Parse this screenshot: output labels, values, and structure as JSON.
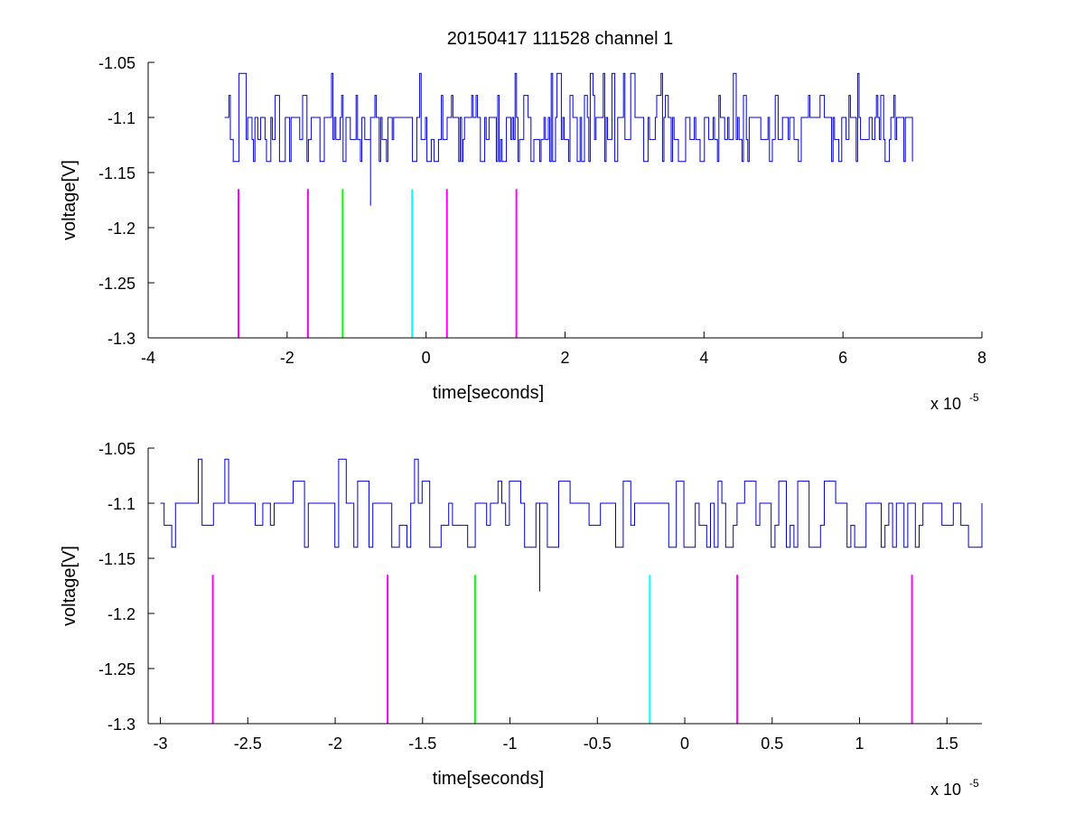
{
  "figure": {
    "title": "20150417 111528 channel 1"
  },
  "colors": {
    "signal": "#0000cc",
    "magenta": "#ff00ff",
    "green": "#00ff00",
    "cyan": "#00ffff",
    "axes": "#000000",
    "background": "#ffffff"
  },
  "chart_data": [
    {
      "type": "line",
      "title": "20150417 111528 channel 1",
      "xlabel": "time[seconds]",
      "ylabel": "voltage[V]",
      "x_multiplier_label": "x 10",
      "x_multiplier_exponent": "-5",
      "xlim": [
        -4,
        8
      ],
      "ylim": [
        -1.3,
        -1.05
      ],
      "xticks": [
        -4,
        -2,
        0,
        2,
        4,
        6,
        8
      ],
      "xtick_labels": [
        "-4",
        "-2",
        "0",
        "2",
        "4",
        "6",
        "8"
      ],
      "yticks": [
        -1.3,
        -1.25,
        -1.2,
        -1.15,
        -1.1,
        -1.05
      ],
      "ytick_labels": [
        "-1.3",
        "-1.25",
        "-1.2",
        "-1.15",
        "-1.1",
        "-1.05"
      ],
      "grid": false,
      "series": [
        {
          "style": "signal",
          "levels": [
            -1.14,
            -1.12,
            -1.1,
            -1.08,
            -1.06
          ],
          "x_range": [
            -2.9,
            7.0
          ],
          "spike": {
            "x": -0.83,
            "y": -1.18
          }
        }
      ],
      "markers": [
        {
          "x": -2.7,
          "y_range": [
            -1.3,
            -1.165
          ],
          "color": "magenta"
        },
        {
          "x": -1.7,
          "y_range": [
            -1.3,
            -1.165
          ],
          "color": "magenta"
        },
        {
          "x": -1.2,
          "y_range": [
            -1.3,
            -1.165
          ],
          "color": "green"
        },
        {
          "x": -0.2,
          "y_range": [
            -1.3,
            -1.165
          ],
          "color": "cyan"
        },
        {
          "x": 0.3,
          "y_range": [
            -1.3,
            -1.165
          ],
          "color": "magenta"
        },
        {
          "x": 1.3,
          "y_range": [
            -1.3,
            -1.165
          ],
          "color": "magenta"
        }
      ]
    },
    {
      "type": "line",
      "title": "",
      "xlabel": "time[seconds]",
      "ylabel": "voltage[V]",
      "x_multiplier_label": "x 10",
      "x_multiplier_exponent": "-5",
      "xlim": [
        -3.07,
        1.7
      ],
      "ylim": [
        -1.3,
        -1.05
      ],
      "xticks": [
        -3,
        -2.5,
        -2,
        -1.5,
        -1,
        -0.5,
        0,
        0.5,
        1,
        1.5
      ],
      "xtick_labels": [
        "-3",
        "-2.5",
        "-2",
        "-1.5",
        "-1",
        "-0.5",
        "0",
        "0.5",
        "1",
        "1.5"
      ],
      "yticks": [
        -1.3,
        -1.25,
        -1.2,
        -1.15,
        -1.1,
        -1.05
      ],
      "ytick_labels": [
        "-1.3",
        "-1.25",
        "-1.2",
        "-1.15",
        "-1.1",
        "-1.05"
      ],
      "grid": false,
      "series": [
        {
          "style": "signal",
          "levels": [
            -1.14,
            -1.12,
            -1.1,
            -1.08,
            -1.06
          ],
          "x_range": [
            -3.0,
            1.7
          ],
          "spike": {
            "x": -0.83,
            "y": -1.18
          }
        }
      ],
      "markers": [
        {
          "x": -2.7,
          "y_range": [
            -1.3,
            -1.165
          ],
          "color": "magenta"
        },
        {
          "x": -1.7,
          "y_range": [
            -1.3,
            -1.165
          ],
          "color": "magenta"
        },
        {
          "x": -1.2,
          "y_range": [
            -1.3,
            -1.165
          ],
          "color": "green"
        },
        {
          "x": -0.2,
          "y_range": [
            -1.3,
            -1.165
          ],
          "color": "cyan"
        },
        {
          "x": 0.3,
          "y_range": [
            -1.3,
            -1.165
          ],
          "color": "magenta"
        },
        {
          "x": 1.3,
          "y_range": [
            -1.3,
            -1.165
          ],
          "color": "magenta"
        }
      ]
    }
  ]
}
